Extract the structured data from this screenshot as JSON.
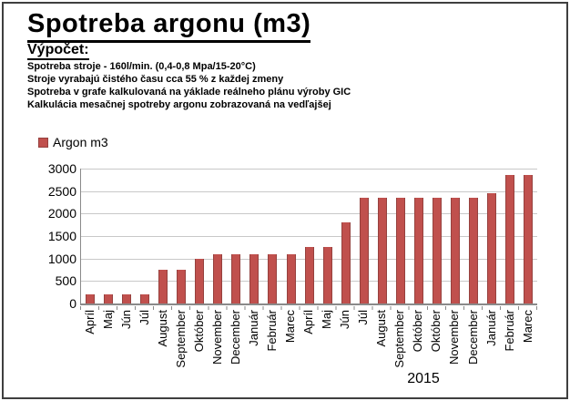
{
  "header": {
    "title": "Spotreba argonu (m3)",
    "subtitle": "Výpočet:",
    "notes": [
      "Spotreba stroje - 160l/min. (0,4-0,8 Mpa/15-20°C)",
      "Stroje vyrabajú čistého času cca 55 % z každej zmeny",
      "Spotreba v grafe kalkulovaná na yáklade reálneho plánu výroby GIC",
      "Kalkulácia mesačnej spotreby argonu zobrazovaná na vedľajšej"
    ]
  },
  "chart_data": {
    "type": "bar",
    "title": "Spotreba argonu (m3)",
    "series_name": "Argon m3",
    "categories": [
      "Apríl",
      "Maj",
      "Jún",
      "Júl",
      "August",
      "September",
      "Október",
      "November",
      "December",
      "Január",
      "Február",
      "Marec",
      "Apríl",
      "Maj",
      "Jún",
      "Júl",
      "August",
      "September",
      "Október",
      "Október",
      "November",
      "December",
      "Január",
      "Február",
      "Marec"
    ],
    "values": [
      200,
      200,
      200,
      200,
      750,
      750,
      1000,
      1100,
      1100,
      1100,
      1100,
      1100,
      1250,
      1250,
      1800,
      2350,
      2350,
      2350,
      2350,
      2350,
      2350,
      2350,
      2450,
      2850,
      2850
    ],
    "ylim": [
      0,
      3000
    ],
    "ytick_interval": 500,
    "yticks": [
      "3000",
      "2500",
      "2000",
      "1500",
      "1000",
      "500",
      "0"
    ],
    "x_group_label": "2015",
    "grid": true,
    "legend_position": "top-left",
    "colors": {
      "bar_fill": "#C0504D",
      "bar_border": "#96413E",
      "gridline": "#C8C8C8",
      "axis": "#8A8A8A",
      "text": "#000000"
    }
  }
}
